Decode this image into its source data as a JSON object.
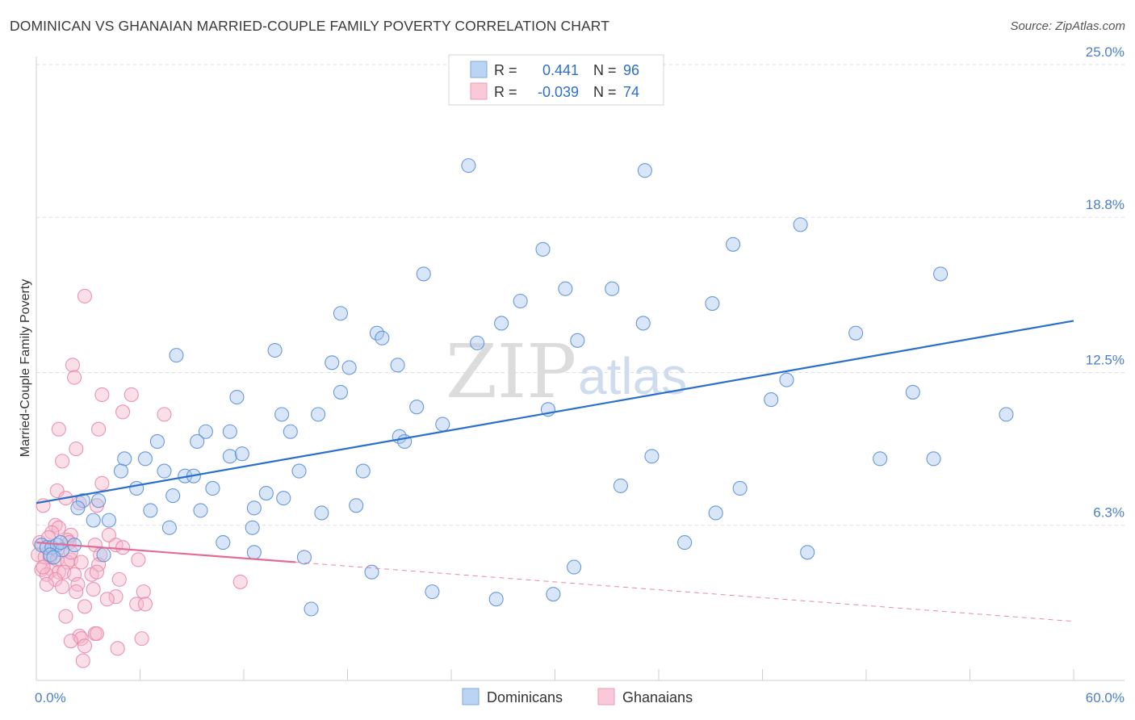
{
  "title": "DOMINICAN VS GHANAIAN MARRIED-COUPLE FAMILY POVERTY CORRELATION CHART",
  "source": "Source: ZipAtlas.com",
  "watermark": {
    "zip": "ZIP",
    "atlas": "atlas"
  },
  "colors": {
    "blue_fill": "#a9c8ef",
    "blue_stroke": "#5b8fd6",
    "blue_line": "#2a6fcb",
    "pink_fill": "#f6b8cc",
    "pink_stroke": "#e88aa9",
    "pink_line": "#e56a94",
    "grid": "#dedede",
    "tick_label": "#4a7fd0"
  },
  "legend": {
    "rows": [
      {
        "r_label": "R =",
        "r_value": "0.441",
        "n_label": "N =",
        "n_value": "96"
      },
      {
        "r_label": "R =",
        "r_value": "-0.039",
        "n_label": "N =",
        "n_value": "74"
      }
    ]
  },
  "chart_data": {
    "type": "scatter",
    "title": "DOMINICAN VS GHANAIAN MARRIED-COUPLE FAMILY POVERTY CORRELATION CHART",
    "xlabel": "",
    "ylabel": "Married-Couple Family Poverty",
    "xlim": [
      0,
      60
    ],
    "ylim": [
      0,
      25
    ],
    "x_tick_labels": [
      "0.0%",
      "60.0%"
    ],
    "y_ticks": [
      6.3,
      12.5,
      18.8,
      25.0
    ],
    "y_tick_labels": [
      "6.3%",
      "12.5%",
      "18.8%",
      "25.0%"
    ],
    "grid": true,
    "legend_position": "top-center",
    "series": [
      {
        "name": "Dominicans",
        "r": 0.441,
        "n": 96,
        "trend": {
          "x": [
            0,
            60
          ],
          "y": [
            7.2,
            14.6
          ],
          "dashed_after": null
        },
        "points": [
          [
            25,
            20.9
          ],
          [
            35.2,
            20.7
          ],
          [
            44.2,
            18.5
          ],
          [
            29.3,
            17.5
          ],
          [
            40.3,
            17.7
          ],
          [
            22.4,
            16.5
          ],
          [
            52.3,
            16.5
          ],
          [
            30.6,
            15.9
          ],
          [
            33.3,
            15.9
          ],
          [
            28,
            15.4
          ],
          [
            39.1,
            15.3
          ],
          [
            17.6,
            14.9
          ],
          [
            26.9,
            14.5
          ],
          [
            35.1,
            14.5
          ],
          [
            19.7,
            14.1
          ],
          [
            20,
            13.9
          ],
          [
            25.5,
            13.7
          ],
          [
            31.3,
            13.8
          ],
          [
            47.4,
            14.1
          ],
          [
            13.8,
            13.4
          ],
          [
            8.1,
            13.2
          ],
          [
            17.1,
            12.9
          ],
          [
            18.1,
            12.7
          ],
          [
            20.9,
            12.8
          ],
          [
            43.4,
            12.2
          ],
          [
            11.6,
            11.5
          ],
          [
            17.6,
            11.7
          ],
          [
            50.7,
            11.7
          ],
          [
            22,
            11.1
          ],
          [
            42.5,
            11.4
          ],
          [
            29.6,
            11
          ],
          [
            14.2,
            10.8
          ],
          [
            16.3,
            10.8
          ],
          [
            23.5,
            10.4
          ],
          [
            56.1,
            10.8
          ],
          [
            9.8,
            10.1
          ],
          [
            11.2,
            10.1
          ],
          [
            14.7,
            10.1
          ],
          [
            7,
            9.7
          ],
          [
            9.3,
            9.7
          ],
          [
            21,
            9.9
          ],
          [
            21.3,
            9.7
          ],
          [
            11.2,
            9.1
          ],
          [
            11.9,
            9.2
          ],
          [
            5.1,
            9
          ],
          [
            6.3,
            9
          ],
          [
            35.6,
            9.1
          ],
          [
            48.8,
            9
          ],
          [
            51.9,
            9
          ],
          [
            4.9,
            8.5
          ],
          [
            7.4,
            8.5
          ],
          [
            8.6,
            8.3
          ],
          [
            9.1,
            8.3
          ],
          [
            15.2,
            8.5
          ],
          [
            18.9,
            8.5
          ],
          [
            5.8,
            7.8
          ],
          [
            7.9,
            7.5
          ],
          [
            10.2,
            7.8
          ],
          [
            13.3,
            7.6
          ],
          [
            14.3,
            7.4
          ],
          [
            33.8,
            7.9
          ],
          [
            40.7,
            7.8
          ],
          [
            2.7,
            7.3
          ],
          [
            3.6,
            7.3
          ],
          [
            2.4,
            7
          ],
          [
            6.6,
            6.9
          ],
          [
            9.5,
            6.9
          ],
          [
            12.6,
            7
          ],
          [
            16.5,
            6.8
          ],
          [
            18.5,
            7.1
          ],
          [
            39.3,
            6.8
          ],
          [
            3.3,
            6.5
          ],
          [
            4.2,
            6.5
          ],
          [
            7.7,
            6.2
          ],
          [
            12.5,
            6.2
          ],
          [
            0.3,
            5.5
          ],
          [
            0.6,
            5.4
          ],
          [
            0.9,
            5.4
          ],
          [
            1.2,
            5.5
          ],
          [
            1.5,
            5.3
          ],
          [
            2.2,
            5.5
          ],
          [
            3.9,
            5.1
          ],
          [
            10.8,
            5.6
          ],
          [
            12.6,
            5.2
          ],
          [
            37.5,
            5.6
          ],
          [
            44.6,
            5.2
          ],
          [
            15.5,
            5
          ],
          [
            31.1,
            4.6
          ],
          [
            19.4,
            4.4
          ],
          [
            22.9,
            3.6
          ],
          [
            15.9,
            2.9
          ],
          [
            26.6,
            3.3
          ],
          [
            29.9,
            3.5
          ],
          [
            0.8,
            5.1
          ],
          [
            1.4,
            5.6
          ],
          [
            1.0,
            5.0
          ]
        ]
      },
      {
        "name": "Ghanaians",
        "r": -0.039,
        "n": 74,
        "trend": {
          "x": [
            0,
            60
          ],
          "y": [
            5.6,
            2.4
          ],
          "dashed_after": 15
        },
        "points": [
          [
            2.8,
            15.6
          ],
          [
            2.1,
            12.8
          ],
          [
            2.2,
            12.3
          ],
          [
            3.8,
            11.6
          ],
          [
            5.5,
            11.6
          ],
          [
            5,
            10.9
          ],
          [
            7.4,
            10.8
          ],
          [
            1.3,
            10.2
          ],
          [
            3.6,
            10.2
          ],
          [
            2.3,
            9.4
          ],
          [
            1.5,
            8.9
          ],
          [
            3.8,
            8
          ],
          [
            1.2,
            7.7
          ],
          [
            1.7,
            7.4
          ],
          [
            2.5,
            7.2
          ],
          [
            0.4,
            7.1
          ],
          [
            3.5,
            7.1
          ],
          [
            1.1,
            6.3
          ],
          [
            1.3,
            6.2
          ],
          [
            0.9,
            6
          ],
          [
            2,
            5.9
          ],
          [
            4.2,
            5.9
          ],
          [
            1.8,
            5.7
          ],
          [
            0.2,
            5.6
          ],
          [
            1.9,
            5.6
          ],
          [
            3.4,
            5.5
          ],
          [
            4.6,
            5.5
          ],
          [
            5,
            5.4
          ],
          [
            3.7,
            5.1
          ],
          [
            0.1,
            5.1
          ],
          [
            0.5,
            5
          ],
          [
            0.8,
            5
          ],
          [
            1.2,
            4.9
          ],
          [
            2,
            4.9
          ],
          [
            1.8,
            4.8
          ],
          [
            2.6,
            4.8
          ],
          [
            3.6,
            4.7
          ],
          [
            5.9,
            4.9
          ],
          [
            0.3,
            4.5
          ],
          [
            0.9,
            4.5
          ],
          [
            1.3,
            4.4
          ],
          [
            1.6,
            4.4
          ],
          [
            2.2,
            4.3
          ],
          [
            0.6,
            4.3
          ],
          [
            3.2,
            4.3
          ],
          [
            3.5,
            4.4
          ],
          [
            1.1,
            4.1
          ],
          [
            0.6,
            3.9
          ],
          [
            2.4,
            3.9
          ],
          [
            4.8,
            4.1
          ],
          [
            3.3,
            3.7
          ],
          [
            2.3,
            3.6
          ],
          [
            6.2,
            3.6
          ],
          [
            4.6,
            3.4
          ],
          [
            4.1,
            3.3
          ],
          [
            5.8,
            3.1
          ],
          [
            6.3,
            3.1
          ],
          [
            2.8,
            3
          ],
          [
            1.7,
            2.6
          ],
          [
            2.5,
            1.8
          ],
          [
            3.4,
            1.9
          ],
          [
            3.5,
            1.9
          ],
          [
            2.6,
            1.7
          ],
          [
            6.1,
            1.7
          ],
          [
            2.8,
            1.4
          ],
          [
            4.7,
            1.3
          ],
          [
            2.7,
            0.8
          ],
          [
            11.8,
            4
          ],
          [
            2,
            1.6
          ],
          [
            0.4,
            4.6
          ],
          [
            1.2,
            5.3
          ],
          [
            0.7,
            5.8
          ],
          [
            2.0,
            5.2
          ],
          [
            1.5,
            3.8
          ]
        ]
      }
    ]
  },
  "bottom_legend": [
    {
      "label": "Dominicans"
    },
    {
      "label": "Ghanaians"
    }
  ]
}
